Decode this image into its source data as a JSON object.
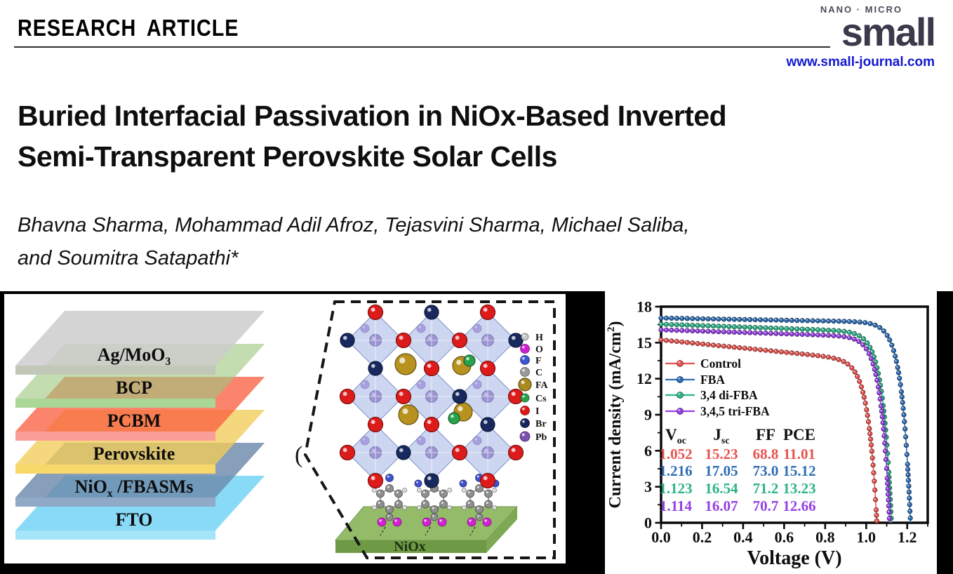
{
  "header": {
    "kicker": "RESEARCH ARTICLE",
    "journal_top": "NANO · MICRO",
    "journal_name": "small",
    "journal_url": "www.small-journal.com"
  },
  "title": {
    "lines": [
      "Buried Interfacial Passivation in NiOx-Based Inverted",
      "Semi-Transparent Perovskite Solar Cells"
    ]
  },
  "authors": {
    "lines": [
      "Bhavna Sharma, Mohammad Adil Afroz, Tejasvini Sharma, Michael Saliba,",
      "and Soumitra Satapathi*"
    ]
  },
  "device_stack": {
    "layers": [
      {
        "pre": "Ag/MoO",
        "sub": "3",
        "post": "",
        "face": "rgba(204,204,204,0.85)",
        "front": "#c2c8b8"
      },
      {
        "pre": "BCP",
        "sub": "",
        "post": "",
        "face": "rgba(158,198,128,0.62)",
        "front": "#aad795"
      },
      {
        "pre": "PCBM",
        "sub": "",
        "post": "",
        "face": "rgba(250,98,66,0.78)",
        "front": "#fb9d99"
      },
      {
        "pre": "Perovskite",
        "sub": "",
        "post": "",
        "face": "rgba(242,205,88,0.78)",
        "front": "#f8d76b"
      },
      {
        "pre": "NiO",
        "sub": "x",
        "post": " /FBASMs",
        "face": "rgba(108,138,172,0.82)",
        "front": "#8fa9c6"
      },
      {
        "pre": "FTO",
        "sub": "",
        "post": "",
        "face": "rgba(123,214,246,0.9)",
        "front": "#a5e4f9"
      }
    ]
  },
  "crystal_panel": {
    "substrate_label": "NiOx",
    "substrate_colors": {
      "top": "#94bc68",
      "front": "#6f9a45",
      "side": "#7ea854"
    },
    "atom_legend": [
      {
        "label": "H",
        "color": "#c9c9c9",
        "r": 5
      },
      {
        "label": "O",
        "color": "#cf1fd1",
        "r": 6.5
      },
      {
        "label": "F",
        "color": "#3c55d4",
        "r": 6.5
      },
      {
        "label": "C",
        "color": "#9a9a9a",
        "r": 6.5
      },
      {
        "label": "FA",
        "color": "#a98b1f",
        "r": 9
      },
      {
        "label": "Cs",
        "color": "#2aa24c",
        "r": 6
      },
      {
        "label": "I",
        "color": "#e01717",
        "r": 6.5
      },
      {
        "label": "Br",
        "color": "#15265e",
        "r": 6.5
      },
      {
        "label": "Pb",
        "color": "#7b4fb0",
        "r": 7
      }
    ]
  },
  "chart_data": {
    "type": "line",
    "title": "",
    "xlabel": "Voltage (V)",
    "ylabel": "Current density (mA/cm2)",
    "ylabel_parts": {
      "main": "Current density (mA/cm",
      "sup": "2",
      "close": ")"
    },
    "xlim": [
      0,
      1.3
    ],
    "ylim": [
      0,
      18
    ],
    "xticks": [
      0.0,
      0.2,
      0.4,
      0.6,
      0.8,
      1.0,
      1.2
    ],
    "xtick_labels": [
      "0.0",
      "0.2",
      "0.4",
      "0.6",
      "0.8",
      "1.0",
      "1.2"
    ],
    "yticks": [
      0,
      3,
      6,
      9,
      12,
      15,
      18
    ],
    "ytick_labels": [
      "0",
      "3",
      "6",
      "9",
      "12",
      "15",
      "18"
    ],
    "grid": false,
    "legend_position": "inside upper-left",
    "series": [
      {
        "name": "Control",
        "color": "#e8534f",
        "voc": "1.052",
        "jsc": "15.23",
        "ff": "68.8",
        "pce": "11.01",
        "slope": 1.7
      },
      {
        "name": "FBA",
        "color": "#2e6db4",
        "voc": "1.216",
        "jsc": "17.05",
        "ff": "73.0",
        "pce": "15.12",
        "slope": 0.3
      },
      {
        "name": "3,4 di-FBA",
        "color": "#2db389",
        "voc": "1.123",
        "jsc": "16.54",
        "ff": "71.2",
        "pce": "13.23",
        "slope": 0.6
      },
      {
        "name": "3,4,5 tri-FBA",
        "color": "#9540e5",
        "voc": "1.114",
        "jsc": "16.07",
        "ff": "70.7",
        "pce": "12.66",
        "slope": 0.55
      }
    ],
    "table": {
      "headers": [
        {
          "main": "V",
          "sub": "oc"
        },
        {
          "main": "J",
          "sub": "sc"
        },
        {
          "main": "FF",
          "sub": ""
        },
        {
          "main": "PCE",
          "sub": ""
        }
      ]
    }
  }
}
